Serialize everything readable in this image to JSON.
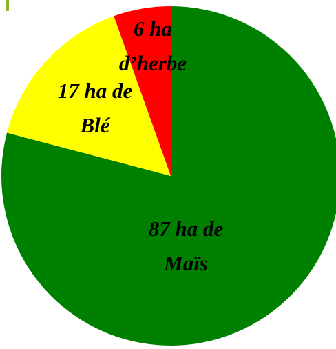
{
  "chart_data": {
    "type": "pie",
    "categories": [
      "Maïs",
      "Blé",
      "herbe"
    ],
    "values": [
      87,
      17,
      6
    ],
    "value_labels": [
      [
        "87 ha de",
        "Maïs"
      ],
      [
        "17 ha de",
        "Blé"
      ],
      [
        "6 ha",
        "d’herbe"
      ]
    ],
    "colors": [
      "#008000",
      "#ffff00",
      "#ff0000"
    ]
  }
}
